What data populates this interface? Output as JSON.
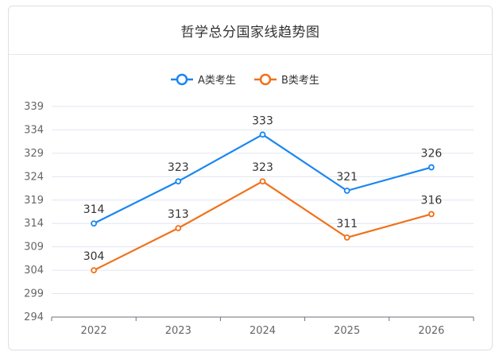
{
  "title": "哲学总分国家线趋势图",
  "chart_data": {
    "type": "line",
    "title": "哲学总分国家线趋势图",
    "categories": [
      "2022",
      "2023",
      "2024",
      "2025",
      "2026"
    ],
    "series": [
      {
        "name": "A类考生",
        "color": "#1a86f0",
        "values": [
          314,
          323,
          333,
          321,
          326
        ]
      },
      {
        "name": "B类考生",
        "color": "#f0711a",
        "values": [
          304,
          313,
          323,
          311,
          316
        ]
      }
    ],
    "yticks": [
      294,
      299,
      304,
      309,
      314,
      319,
      324,
      329,
      334,
      339
    ],
    "ylim": [
      294,
      339
    ],
    "grid": true,
    "legend_position": "top-center"
  }
}
